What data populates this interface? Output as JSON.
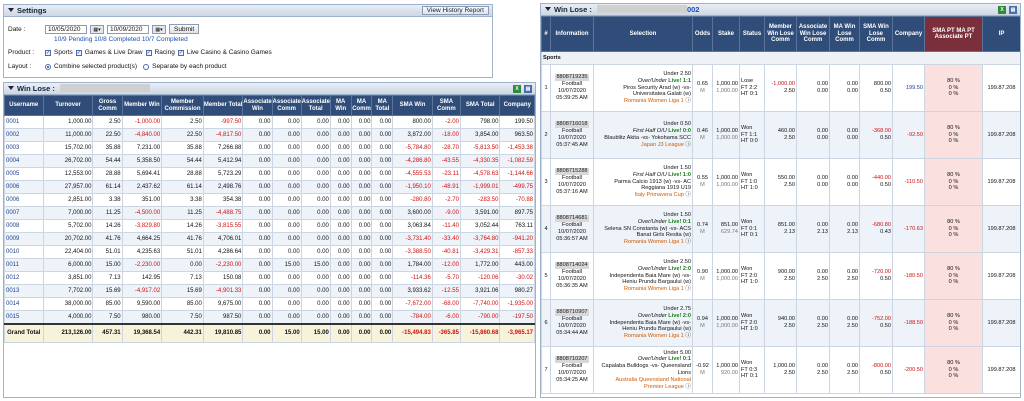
{
  "settings": {
    "title": "Settings",
    "view_history": "View History Report",
    "date_label": "Date :",
    "date_from": "10/05/2020",
    "date_to": "10/09/2020",
    "submit": "Submit",
    "status_line": "10/9 Pending 10/8 Completed 10/7 Completed",
    "product_label": "Product :",
    "products": [
      "Sports",
      "Games & Live Draw",
      "Racing",
      "Live Casino & Casino Games"
    ],
    "layout_label": "Layout :",
    "layout_options": [
      "Combine selected product(s)",
      "Separate by each product"
    ]
  },
  "winlose_left": {
    "title": "Win Lose :",
    "headers": [
      "Username",
      "Turnover",
      "Gross Comm",
      "Member Win",
      "Member Commission",
      "Member Total",
      "Associate Win",
      "Associate Comm",
      "Associate Total",
      "MA Win",
      "MA Comm",
      "MA Total",
      "SMA Win",
      "SMA Comm",
      "SMA Total",
      "Company"
    ],
    "rows": [
      [
        "0001",
        "1,000.00",
        "2.50",
        "-1,000.00",
        "2.50",
        "-997.50",
        "0.00",
        "0.00",
        "0.00",
        "0.00",
        "0.00",
        "0.00",
        "800.00",
        "-2.00",
        "798.00",
        "199.50"
      ],
      [
        "0002",
        "11,000.00",
        "22.50",
        "-4,840.00",
        "22.50",
        "-4,817.50",
        "0.00",
        "0.00",
        "0.00",
        "0.00",
        "0.00",
        "0.00",
        "3,872.00",
        "-18.00",
        "3,854.00",
        "963.50"
      ],
      [
        "0003",
        "15,702.00",
        "35.88",
        "7,231.00",
        "35.88",
        "7,266.88",
        "0.00",
        "0.00",
        "0.00",
        "0.00",
        "0.00",
        "0.00",
        "-5,784.80",
        "-28.70",
        "-5,813.50",
        "-1,453.38"
      ],
      [
        "0004",
        "26,702.00",
        "54.44",
        "5,358.50",
        "54.44",
        "5,412.94",
        "0.00",
        "0.00",
        "0.00",
        "0.00",
        "0.00",
        "0.00",
        "-4,286.80",
        "-43.55",
        "-4,330.35",
        "-1,082.59"
      ],
      [
        "0005",
        "12,553.00",
        "28.88",
        "5,694.41",
        "28.88",
        "5,723.29",
        "0.00",
        "0.00",
        "0.00",
        "0.00",
        "0.00",
        "0.00",
        "-4,555.53",
        "-23.11",
        "-4,578.63",
        "-1,144.66"
      ],
      [
        "0006",
        "27,957.00",
        "61.14",
        "2,437.62",
        "61.14",
        "2,498.76",
        "0.00",
        "0.00",
        "0.00",
        "0.00",
        "0.00",
        "0.00",
        "-1,950.10",
        "-48.91",
        "-1,999.01",
        "-499.75"
      ],
      [
        "0006",
        "2,851.00",
        "3.38",
        "351.00",
        "3.38",
        "354.38",
        "0.00",
        "0.00",
        "0.00",
        "0.00",
        "0.00",
        "0.00",
        "-280.80",
        "-2.70",
        "-283.50",
        "-70.88"
      ],
      [
        "0007",
        "7,000.00",
        "11.25",
        "-4,500.00",
        "11.25",
        "-4,488.75",
        "0.00",
        "0.00",
        "0.00",
        "0.00",
        "0.00",
        "0.00",
        "3,600.00",
        "-9.00",
        "3,591.00",
        "897.75"
      ],
      [
        "0008",
        "5,702.00",
        "14.26",
        "-3,829.80",
        "14.26",
        "-3,815.55",
        "0.00",
        "0.00",
        "0.00",
        "0.00",
        "0.00",
        "0.00",
        "3,063.84",
        "-11.40",
        "3,052.44",
        "763.11"
      ],
      [
        "0009",
        "20,702.00",
        "41.76",
        "4,664.25",
        "41.76",
        "4,706.01",
        "0.00",
        "0.00",
        "0.00",
        "0.00",
        "0.00",
        "0.00",
        "-3,731.40",
        "-33.40",
        "-3,764.80",
        "-941.20"
      ],
      [
        "0010",
        "22,404.00",
        "51.01",
        "4,235.63",
        "51.01",
        "4,286.64",
        "0.00",
        "0.00",
        "0.00",
        "0.00",
        "0.00",
        "0.00",
        "-3,388.50",
        "-40.81",
        "-3,429.31",
        "-857.33"
      ],
      [
        "0011",
        "6,000.00",
        "15.00",
        "-2,230.00",
        "0.00",
        "-2,230.00",
        "0.00",
        "15.00",
        "15.00",
        "0.00",
        "0.00",
        "0.00",
        "1,784.00",
        "-12.00",
        "1,772.00",
        "443.00"
      ],
      [
        "0012",
        "3,851.00",
        "7.13",
        "142.95",
        "7.13",
        "150.08",
        "0.00",
        "0.00",
        "0.00",
        "0.00",
        "0.00",
        "0.00",
        "-114.36",
        "-5.70",
        "-120.06",
        "-30.02"
      ],
      [
        "0013",
        "7,702.00",
        "15.69",
        "-4,917.02",
        "15.69",
        "-4,901.33",
        "0.00",
        "0.00",
        "0.00",
        "0.00",
        "0.00",
        "0.00",
        "3,933.62",
        "-12.55",
        "3,921.06",
        "980.27"
      ],
      [
        "0014",
        "38,000.00",
        "85.00",
        "9,590.00",
        "85.00",
        "9,675.00",
        "0.00",
        "0.00",
        "0.00",
        "0.00",
        "0.00",
        "0.00",
        "-7,672.00",
        "-68.00",
        "-7,740.00",
        "-1,935.00"
      ],
      [
        "0015",
        "4,000.00",
        "7.50",
        "980.00",
        "7.50",
        "987.50",
        "0.00",
        "0.00",
        "0.00",
        "0.00",
        "0.00",
        "0.00",
        "-784.00",
        "-6.00",
        "-790.00",
        "-197.50"
      ]
    ],
    "grand_label": "Grand Total",
    "grand": [
      "213,126.00",
      "457.31",
      "19,368.54",
      "442.31",
      "19,810.85",
      "0.00",
      "15.00",
      "15.00",
      "0.00",
      "0.00",
      "0.00",
      "-15,494.83",
      "-365.85",
      "-15,860.68",
      "-3,965.17"
    ]
  },
  "winlose_right": {
    "title": "Win Lose :",
    "title_suffix": "002",
    "headers": [
      "#",
      "Information",
      "Selection",
      "Odds",
      "Stake",
      "Status",
      "Member Win Lose Comm",
      "Associate Win Lose Comm",
      "MA Win Lose Comm",
      "SMA Win Lose Comm",
      "Company",
      "SMA PT MA PT Associate PT",
      "IP"
    ],
    "section": "Sports",
    "rows": [
      {
        "n": "1",
        "id": "8808719235",
        "sport": "Football",
        "date": "10/07/2020",
        "time": "05:39:25 AM",
        "bet": "Under 2.50",
        "type": "Over/Under",
        "live": "Live! 1:1",
        "match": "Piros Security Arad (w) -vs- Universitatea Galati (w)",
        "league": "Romania Women Liga 1",
        "odds": "0.65",
        "oddtype": "M",
        "stake": "1,000.00",
        "stake2": "1,000.00",
        "status": "Lose",
        "score": "FT 2:2",
        "ht": "HT 0:1",
        "mw": "-1,000.00",
        "mc": "2.50",
        "aw": "0.00",
        "ac": "0.00",
        "maw": "0.00",
        "mac": "0.00",
        "sw": "800.00",
        "sc": "0.50",
        "company": "199.50",
        "pt": [
          "80 %",
          "0 %",
          "0 %"
        ],
        "ip": "199.87.208"
      },
      {
        "n": "2",
        "id": "8808716018",
        "sport": "Football",
        "date": "10/07/2020",
        "time": "05:37:45 AM",
        "bet": "Under 0.50",
        "type": "First Half O/U",
        "live": "Live! 0:0",
        "match": "Blaublitz Akita -vs- Yokohama SCC",
        "league": "Japan J3 League",
        "odds": "0.46",
        "oddtype": "M",
        "stake": "1,000.00",
        "stake2": "1,000.00",
        "status": "Won",
        "score": "FT 1:1",
        "ht": "HT 0:0",
        "mw": "460.00",
        "mc": "2.50",
        "aw": "0.00",
        "ac": "0.00",
        "maw": "0.00",
        "mac": "0.00",
        "sw": "-368.00",
        "sc": "0.50",
        "company": "-92.50",
        "pt": [
          "80 %",
          "0 %",
          "0 %"
        ],
        "ip": "199.87.208"
      },
      {
        "n": "3",
        "id": "8808715288",
        "sport": "Football",
        "date": "10/07/2020",
        "time": "05:37:16 AM",
        "bet": "Under 1.50",
        "type": "First Half O/U",
        "live": "Live! 1:0",
        "match": "Parma Calcio 1913 (w) -vs- AC Reggiana 1919 U19",
        "league": "Italy Primavera Cup",
        "odds": "0.55",
        "oddtype": "M",
        "stake": "1,000.00",
        "stake2": "1,000.00",
        "status": "Won",
        "score": "FT 1:0",
        "ht": "HT 1:0",
        "mw": "550.00",
        "mc": "2.50",
        "aw": "0.00",
        "ac": "0.00",
        "maw": "0.00",
        "mac": "0.00",
        "sw": "-440.00",
        "sc": "0.50",
        "company": "-110.50",
        "pt": [
          "80 %",
          "0 %",
          "0 %"
        ],
        "ip": "199.87.208"
      },
      {
        "n": "4",
        "id": "8808714681",
        "sport": "Football",
        "date": "10/07/2020",
        "time": "05:36:57 AM",
        "bet": "Under 1.50",
        "type": "Over/Under",
        "live": "Live! 0:1",
        "match": "Selena SN Constanta (w) -vs- ACS Banat Girls Resita (w)",
        "league": "Romania Women Liga 1",
        "odds": "0.74",
        "oddtype": "M",
        "stake": "851.00",
        "stake2": "629.74",
        "status": "Won",
        "score": "FT 0:1",
        "ht": "HT 0:1",
        "mw": "851.00",
        "mc": "2.13",
        "aw": "0.00",
        "ac": "2.13",
        "maw": "0.00",
        "mac": "2.13",
        "sw": "-680.80",
        "sc": "0.43",
        "company": "-170.63",
        "pt": [
          "80 %",
          "0 %",
          "0 %"
        ],
        "ip": "199.87.208"
      },
      {
        "n": "5",
        "id": "8808714024",
        "sport": "Football",
        "date": "10/07/2020",
        "time": "05:36:35 AM",
        "bet": "Under 2.50",
        "type": "Over/Under",
        "live": "Live! 2:0",
        "match": "Independenta Baia Mare (w) -vs- Heniu Prundu Bargaului (w)",
        "league": "Romania Women Liga 1",
        "odds": "0.90",
        "oddtype": "M",
        "stake": "1,000.00",
        "stake2": "1,000.00",
        "status": "Won",
        "score": "FT 2:0",
        "ht": "HT 1:0",
        "mw": "900.00",
        "mc": "2.50",
        "aw": "0.00",
        "ac": "2.50",
        "maw": "0.00",
        "mac": "2.50",
        "sw": "-720.00",
        "sc": "0.50",
        "company": "-180.50",
        "pt": [
          "80 %",
          "0 %",
          "0 %"
        ],
        "ip": "199.87.208"
      },
      {
        "n": "6",
        "id": "8808710907",
        "sport": "Football",
        "date": "10/07/2020",
        "time": "05:34:44 AM",
        "bet": "Under 2.75",
        "type": "Over/Under",
        "live": "Live! 2:0",
        "match": "Independenta Baia Mare (w) -vs- Heniu Prundu Bargaului (w)",
        "league": "Romania Women Liga 1",
        "odds": "0.94",
        "oddtype": "M",
        "stake": "1,000.00",
        "stake2": "1,000.00",
        "status": "Won",
        "score": "FT 2:0",
        "ht": "HT 1:0",
        "mw": "940.00",
        "mc": "2.50",
        "aw": "0.00",
        "ac": "2.50",
        "maw": "0.00",
        "mac": "2.50",
        "sw": "-752.00",
        "sc": "0.50",
        "company": "-188.50",
        "pt": [
          "80 %",
          "0 %",
          "0 %"
        ],
        "ip": "199.87.208"
      },
      {
        "n": "7",
        "id": "8808710207",
        "sport": "Football",
        "date": "10/07/2020",
        "time": "05:34:25 AM",
        "bet": "Under 5.00",
        "type": "Over/Under",
        "live": "Live! 0:1",
        "match": "Capalaba Bulldogs -vs- Queensland Lions",
        "league": "Australia Queensland National Premier League",
        "odds": "-0.92",
        "oddtype": "M",
        "stake": "1,000.00",
        "stake2": "920.00",
        "status": "Won",
        "score": "FT 0:3",
        "ht": "HT 0:1",
        "mw": "1,000.00",
        "mc": "2.50",
        "aw": "0.00",
        "ac": "2.50",
        "maw": "0.00",
        "mac": "2.50",
        "sw": "-800.00",
        "sc": "0.50",
        "company": "-200.50",
        "pt": [
          "80 %",
          "0 %",
          "0 %"
        ],
        "ip": "199.87.208"
      }
    ]
  }
}
